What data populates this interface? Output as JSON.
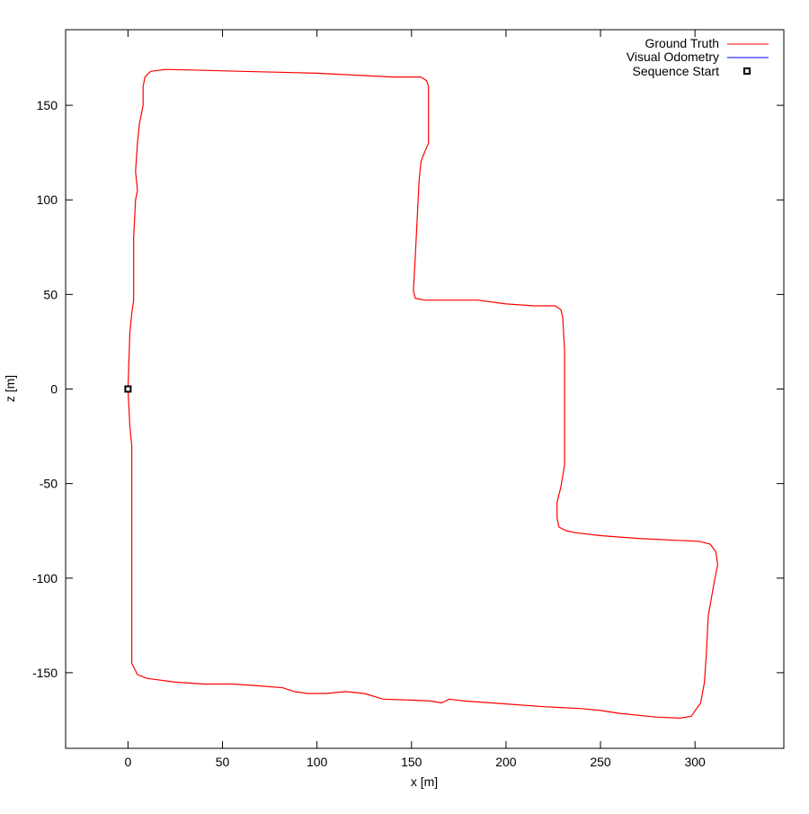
{
  "chart_data": {
    "type": "line",
    "title": "",
    "xlabel": "x [m]",
    "ylabel": "z [m]",
    "xlim": [
      -33,
      347
    ],
    "ylim": [
      -190,
      190
    ],
    "x_ticks": [
      0,
      50,
      100,
      150,
      200,
      250,
      300
    ],
    "y_ticks": [
      150,
      100,
      50,
      0,
      -50,
      -100,
      -150
    ],
    "grid": false,
    "legend_position": "top-right",
    "colors": {
      "ground_truth": "#ff0000",
      "visual_odometry": "#0000ff",
      "sequence_start": "#000000"
    },
    "series": [
      {
        "name": "Ground Truth",
        "points": [
          [
            0,
            0
          ],
          [
            1,
            -20
          ],
          [
            2,
            -30
          ],
          [
            2,
            -70
          ],
          [
            2,
            -120
          ],
          [
            2,
            -145
          ],
          [
            5,
            -151
          ],
          [
            10,
            -153
          ],
          [
            25,
            -155
          ],
          [
            40,
            -156
          ],
          [
            55,
            -156
          ],
          [
            70,
            -157
          ],
          [
            82,
            -158
          ],
          [
            88,
            -160
          ],
          [
            95,
            -161
          ],
          [
            105,
            -161
          ],
          [
            115,
            -160
          ],
          [
            125,
            -161
          ],
          [
            135,
            -164
          ],
          [
            150,
            -164.5
          ],
          [
            160,
            -165
          ],
          [
            166,
            -166
          ],
          [
            170,
            -164
          ],
          [
            178,
            -165
          ],
          [
            200,
            -166.5
          ],
          [
            220,
            -168
          ],
          [
            240,
            -169
          ],
          [
            250,
            -170
          ],
          [
            260,
            -171.5
          ],
          [
            280,
            -173.5
          ],
          [
            292,
            -174
          ],
          [
            298,
            -173
          ],
          [
            303,
            -166
          ],
          [
            305,
            -155
          ],
          [
            306,
            -140
          ],
          [
            307,
            -120
          ],
          [
            310,
            -103
          ],
          [
            312,
            -93
          ],
          [
            311,
            -86
          ],
          [
            308,
            -82
          ],
          [
            302,
            -80.5
          ],
          [
            290,
            -80
          ],
          [
            270,
            -79
          ],
          [
            250,
            -77.5
          ],
          [
            237,
            -76
          ],
          [
            232,
            -75
          ],
          [
            228,
            -73
          ],
          [
            227,
            -68
          ],
          [
            227,
            -60
          ],
          [
            229,
            -52
          ],
          [
            231,
            -40
          ],
          [
            231,
            -20
          ],
          [
            231,
            0
          ],
          [
            231,
            20
          ],
          [
            230,
            38
          ],
          [
            229,
            42
          ],
          [
            226,
            44
          ],
          [
            215,
            44
          ],
          [
            200,
            45
          ],
          [
            185,
            47
          ],
          [
            170,
            47
          ],
          [
            157,
            47
          ],
          [
            152,
            48
          ],
          [
            151,
            52
          ],
          [
            152,
            70
          ],
          [
            153,
            90
          ],
          [
            154,
            110
          ],
          [
            155,
            120
          ],
          [
            156,
            123
          ],
          [
            159,
            130
          ],
          [
            159,
            150
          ],
          [
            159,
            160
          ],
          [
            158,
            163
          ],
          [
            155,
            165
          ],
          [
            140,
            165
          ],
          [
            120,
            166
          ],
          [
            100,
            167
          ],
          [
            80,
            167.5
          ],
          [
            60,
            168
          ],
          [
            40,
            168.5
          ],
          [
            20,
            169
          ],
          [
            12,
            168
          ],
          [
            9,
            165
          ],
          [
            8,
            160
          ],
          [
            8,
            150
          ],
          [
            6,
            140
          ],
          [
            5,
            130
          ],
          [
            4,
            115
          ],
          [
            5,
            105
          ],
          [
            4,
            100
          ],
          [
            3,
            80
          ],
          [
            3,
            55
          ],
          [
            3,
            47
          ],
          [
            2,
            40
          ],
          [
            1,
            30
          ],
          [
            0.5,
            15
          ],
          [
            0,
            0
          ]
        ]
      },
      {
        "name": "Visual Odometry",
        "points": []
      },
      {
        "name": "Sequence Start",
        "points": [
          [
            0,
            0
          ]
        ]
      }
    ]
  }
}
